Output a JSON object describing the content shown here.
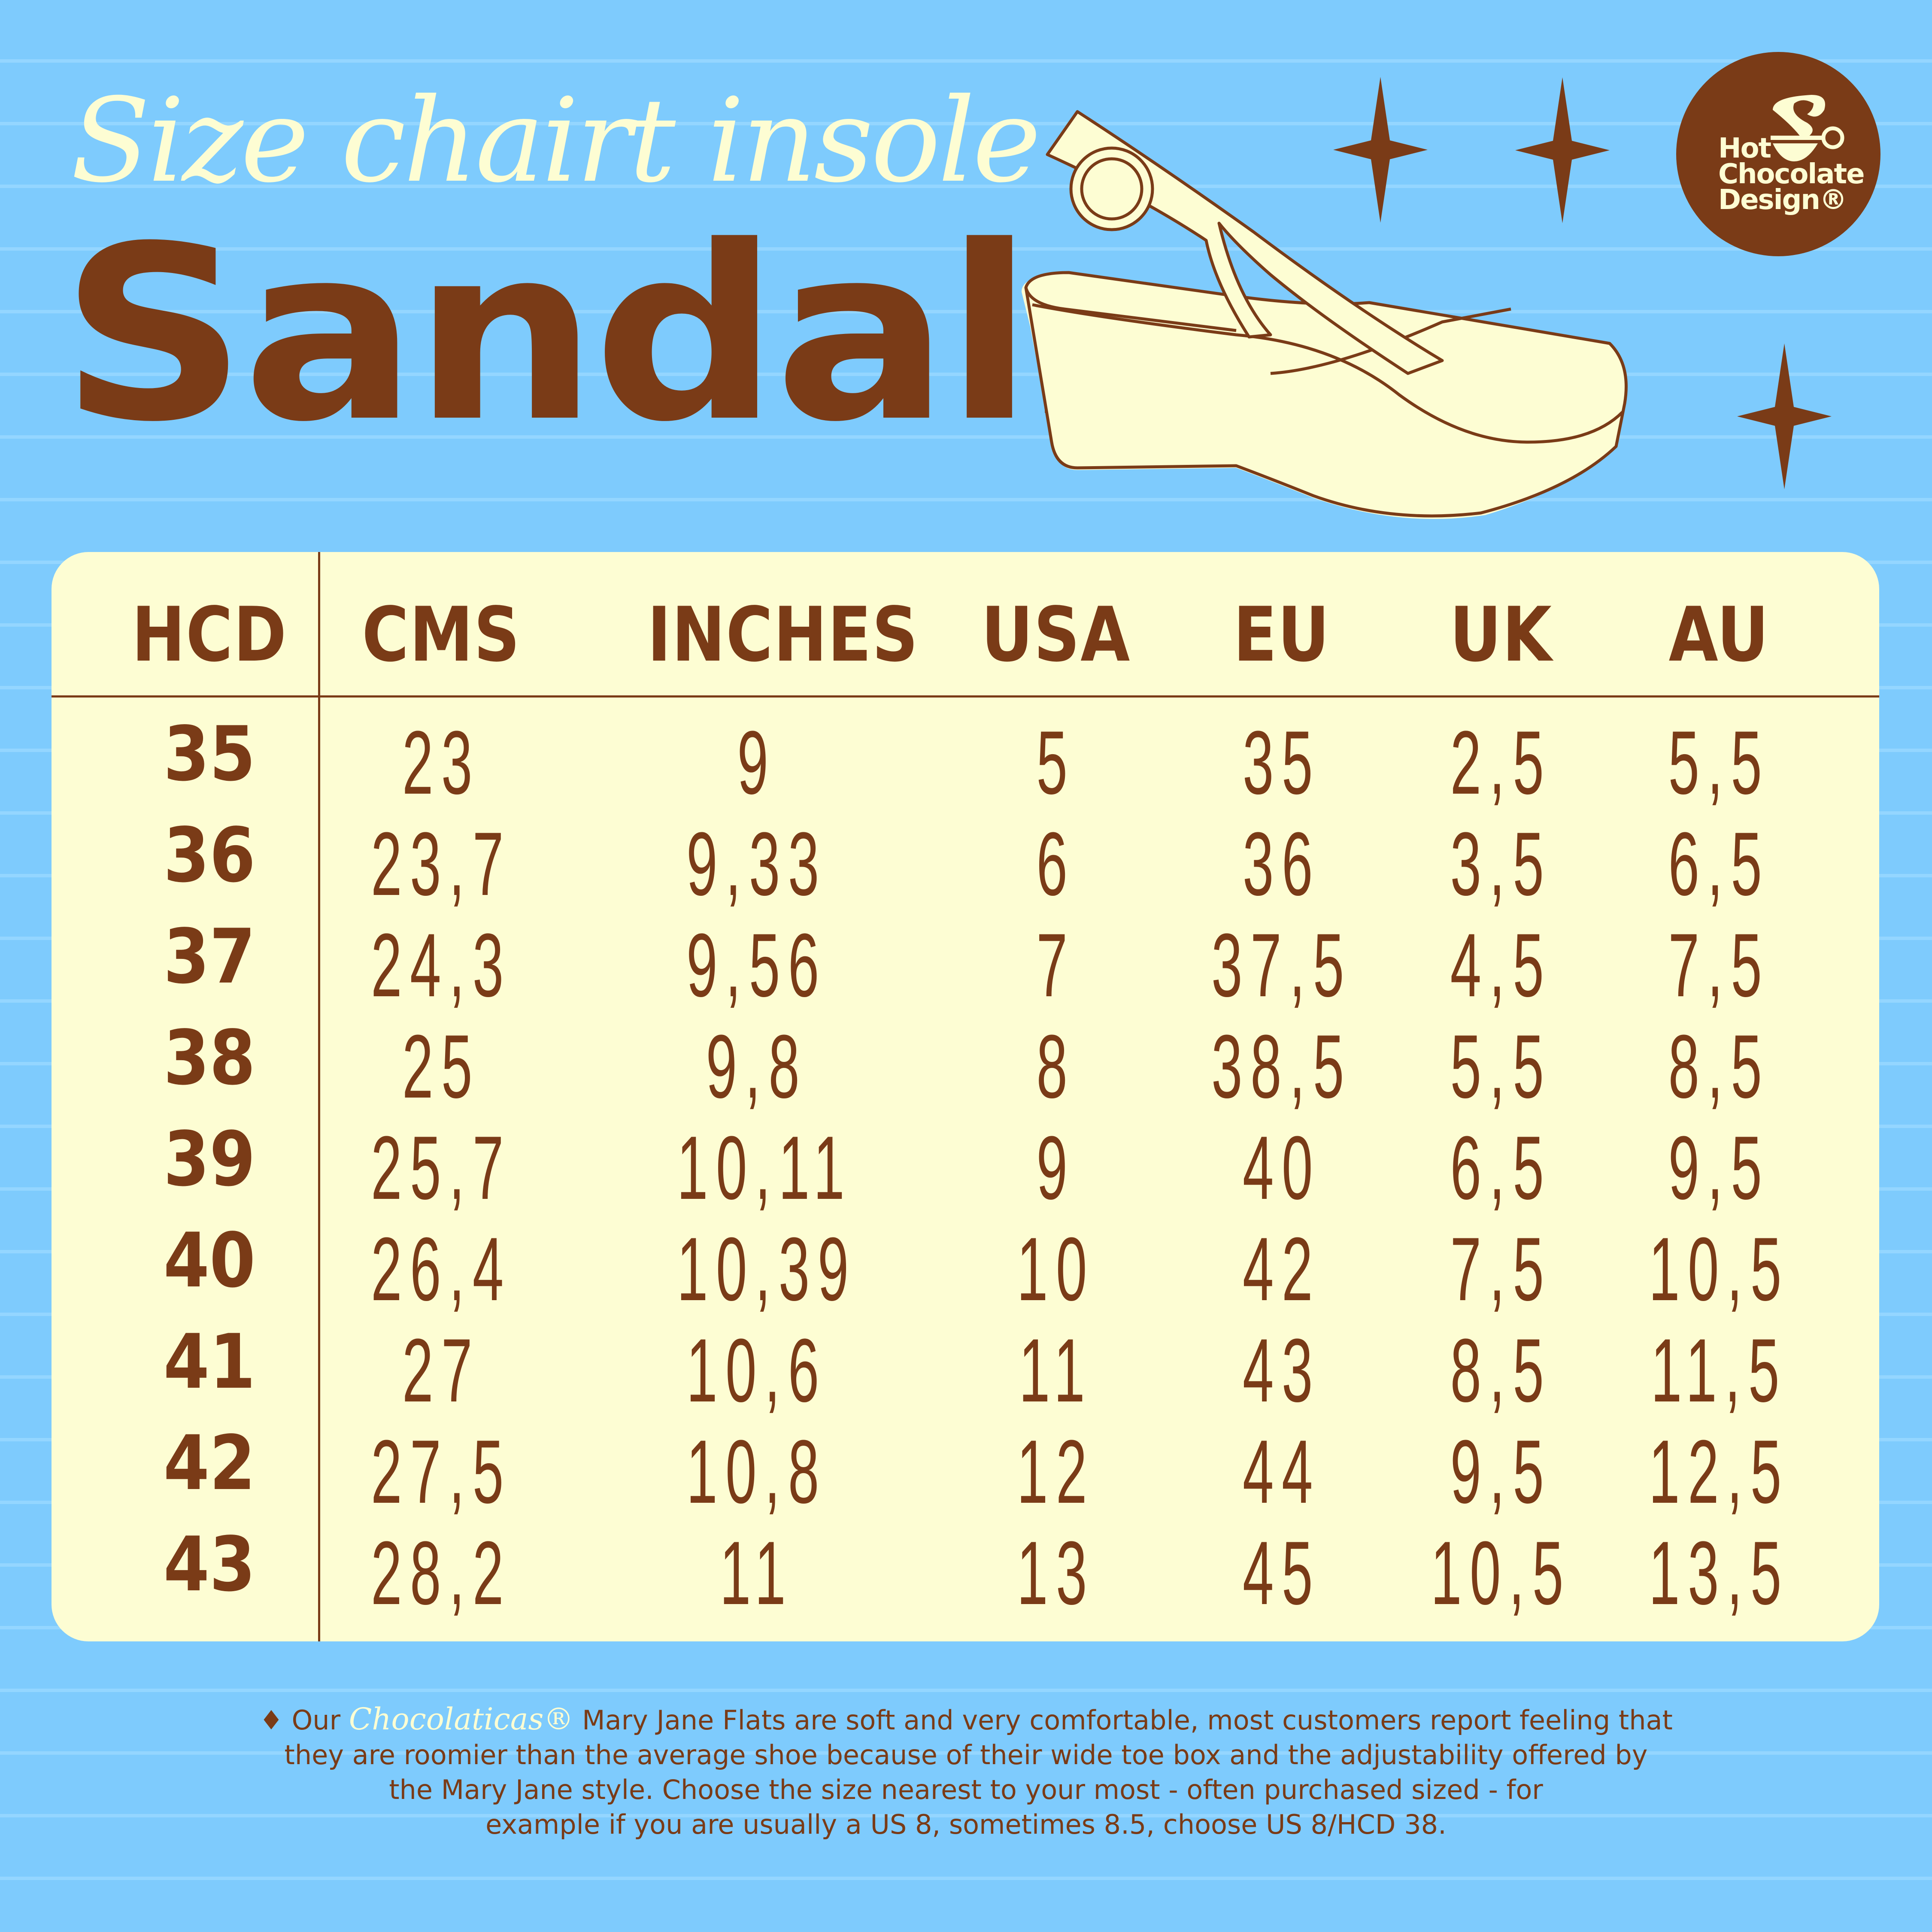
{
  "header": {
    "script_title": "Size chairt insole",
    "title": "Sandals"
  },
  "logo": {
    "line1": "Hot",
    "line2": "Chocolate",
    "line3": "Design®"
  },
  "colors": {
    "background": "#7ecbfd",
    "stripe": "#94d6ff",
    "brown": "#7a3b17",
    "cream": "#fdfdd3"
  },
  "icons": [
    "sandal-illustration",
    "star-icon",
    "star-icon",
    "star-icon",
    "cup-logo-icon"
  ],
  "table": {
    "columns": [
      "HCD",
      "CMS",
      "INCHES",
      "USA",
      "EU",
      "UK",
      "AU"
    ],
    "rows": [
      [
        "35",
        "23",
        "9",
        "5",
        "35",
        "2,5",
        "5,5"
      ],
      [
        "36",
        "23,7",
        "9,33",
        "6",
        "36",
        "3,5",
        "6,5"
      ],
      [
        "37",
        "24,3",
        "9,56",
        "7",
        "37,5",
        "4,5",
        "7,5"
      ],
      [
        "38",
        "25",
        "9,8",
        "8",
        "38,5",
        "5,5",
        "8,5"
      ],
      [
        "39",
        "25,7",
        "10,11",
        "9",
        "40",
        "6,5",
        "9,5"
      ],
      [
        "40",
        "26,4",
        "10,39",
        "10",
        "42",
        "7,5",
        "10,5"
      ],
      [
        "41",
        "27",
        "10,6",
        "11",
        "43",
        "8,5",
        "11,5"
      ],
      [
        "42",
        "27,5",
        "10,8",
        "12",
        "44",
        "9,5",
        "12,5"
      ],
      [
        "43",
        "28,2",
        "11",
        "13",
        "45",
        "10,5",
        "13,5"
      ]
    ]
  },
  "footer": {
    "bullet": "♦",
    "prefix": "Our",
    "brand": "Chocolaticas®",
    "line1_rest": "Mary Jane Flats are soft and very comfortable, most customers report feeling that",
    "line2": "they are roomier than the average shoe because of their wide toe box and the adjustability offered by",
    "line3": "the Mary Jane style. Choose the size nearest to your most - often  purchased sized - for",
    "line4": "example if you are usually a US 8, sometimes 8.5, choose US 8/HCD 38."
  }
}
